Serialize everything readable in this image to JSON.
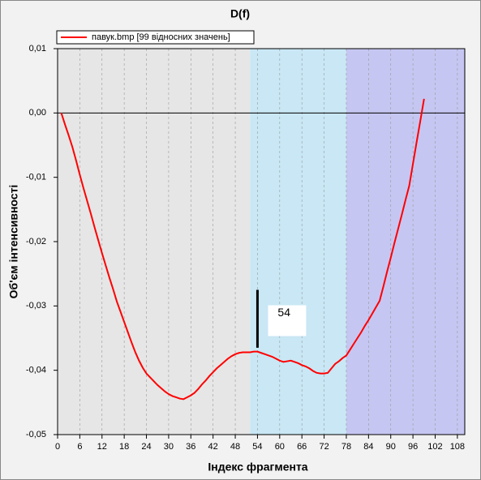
{
  "chart_data": {
    "type": "line",
    "title": "D(f)",
    "xlabel": "Індекс фрагмента",
    "ylabel": "Об'єм інтенсивності",
    "xlim": [
      0,
      110
    ],
    "ylim": [
      -0.05,
      0.01
    ],
    "xticks": [
      0,
      6,
      12,
      18,
      24,
      30,
      36,
      42,
      48,
      54,
      60,
      66,
      72,
      78,
      84,
      90,
      96,
      102,
      108
    ],
    "yticks": [
      {
        "value": -0.05,
        "label": "-0,05"
      },
      {
        "value": -0.04,
        "label": "-0,04"
      },
      {
        "value": -0.03,
        "label": "-0,03"
      },
      {
        "value": -0.02,
        "label": "-0,02"
      },
      {
        "value": -0.01,
        "label": "-0,01"
      },
      {
        "value": 0,
        "label": "0,00"
      },
      {
        "value": 0.01,
        "label": "0,01"
      }
    ],
    "grid": true,
    "zero_line": true,
    "legend": "top-left",
    "regions": [
      {
        "from": 0,
        "to": 52,
        "color": "#e6e6e6"
      },
      {
        "from": 52,
        "to": 78,
        "color": "#c9e7f5"
      },
      {
        "from": 78,
        "to": 110,
        "color": "#c6c6f2"
      }
    ],
    "annotation": {
      "label": "54",
      "x": 54,
      "y1": -0.0275,
      "y2": -0.0365
    },
    "x": [
      1,
      2,
      3,
      4,
      5,
      6,
      7,
      8,
      9,
      10,
      11,
      12,
      13,
      14,
      15,
      16,
      17,
      18,
      19,
      20,
      21,
      22,
      23,
      24,
      25,
      26,
      27,
      28,
      29,
      30,
      31,
      32,
      33,
      34,
      35,
      36,
      37,
      38,
      39,
      40,
      41,
      42,
      43,
      44,
      45,
      46,
      47,
      48,
      49,
      50,
      51,
      52,
      53,
      54,
      55,
      56,
      57,
      58,
      59,
      60,
      61,
      62,
      63,
      64,
      65,
      66,
      67,
      68,
      69,
      70,
      71,
      72,
      73,
      74,
      75,
      76,
      77,
      78,
      79,
      80,
      81,
      82,
      83,
      84,
      85,
      86,
      87,
      88,
      89,
      90,
      91,
      92,
      93,
      94,
      95,
      96,
      97,
      98,
      99
    ],
    "series": [
      {
        "name": "павук.bmp [99 відносних значень]",
        "color": "#ff0000",
        "values": [
          0.0,
          -0.0018,
          -0.0035,
          -0.0053,
          -0.0074,
          -0.0096,
          -0.0117,
          -0.0137,
          -0.0157,
          -0.0178,
          -0.0198,
          -0.0218,
          -0.0237,
          -0.0256,
          -0.0274,
          -0.0293,
          -0.0309,
          -0.0325,
          -0.0341,
          -0.0357,
          -0.0372,
          -0.0385,
          -0.0396,
          -0.0405,
          -0.0411,
          -0.0417,
          -0.0423,
          -0.0428,
          -0.0433,
          -0.0437,
          -0.044,
          -0.0442,
          -0.0444,
          -0.0445,
          -0.0442,
          -0.0439,
          -0.0435,
          -0.0429,
          -0.0422,
          -0.0416,
          -0.0409,
          -0.0403,
          -0.0397,
          -0.0392,
          -0.0387,
          -0.0382,
          -0.0378,
          -0.0375,
          -0.0373,
          -0.0372,
          -0.0372,
          -0.0372,
          -0.0371,
          -0.0371,
          -0.0373,
          -0.0375,
          -0.0377,
          -0.0379,
          -0.0382,
          -0.0385,
          -0.0387,
          -0.0386,
          -0.0385,
          -0.0387,
          -0.0389,
          -0.0392,
          -0.0394,
          -0.0397,
          -0.0401,
          -0.0404,
          -0.0405,
          -0.0405,
          -0.0404,
          -0.0397,
          -0.039,
          -0.0386,
          -0.0381,
          -0.0377,
          -0.0368,
          -0.0359,
          -0.035,
          -0.0341,
          -0.0331,
          -0.0322,
          -0.0312,
          -0.0302,
          -0.0292,
          -0.027,
          -0.0247,
          -0.0225,
          -0.0202,
          -0.018,
          -0.0158,
          -0.0135,
          -0.0113,
          -0.0079,
          -0.0045,
          -0.0012,
          0.0022
        ]
      }
    ]
  }
}
